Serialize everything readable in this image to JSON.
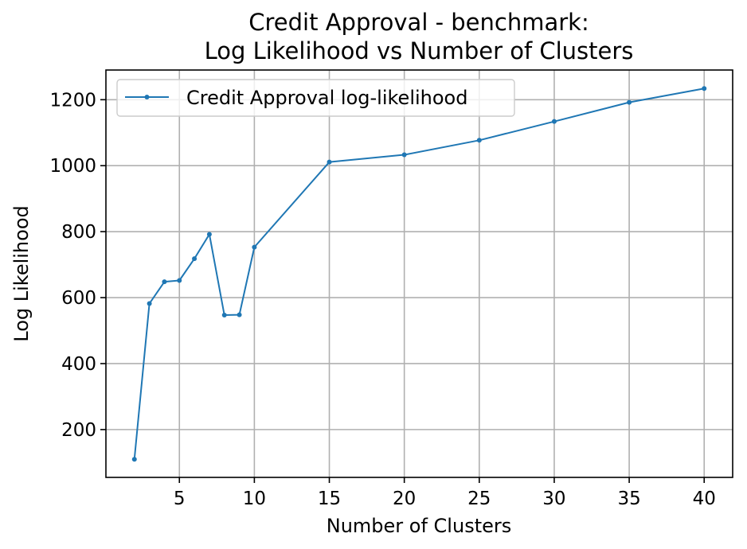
{
  "chart_data": {
    "type": "line",
    "title_lines": [
      "Credit Approval - benchmark:",
      "Log Likelihood vs Number of Clusters"
    ],
    "xlabel": "Number of Clusters",
    "ylabel": "Log Likelihood",
    "xlim": [
      0.1,
      41.9
    ],
    "ylim": [
      55,
      1290
    ],
    "xticks": [
      5,
      10,
      15,
      20,
      25,
      30,
      35,
      40
    ],
    "yticks": [
      200,
      400,
      600,
      800,
      1000,
      1200
    ],
    "grid": true,
    "legend_position": "upper-left",
    "series": [
      {
        "name": "Credit Approval log-likelihood",
        "color": "#1f77b4",
        "marker": "dot",
        "x": [
          2,
          3,
          4,
          5,
          6,
          7,
          8,
          9,
          10,
          15,
          20,
          25,
          30,
          35,
          40
        ],
        "y": [
          110,
          582,
          648,
          652,
          718,
          792,
          547,
          548,
          753,
          1011,
          1033,
          1077,
          1134,
          1192,
          1234
        ]
      }
    ]
  }
}
